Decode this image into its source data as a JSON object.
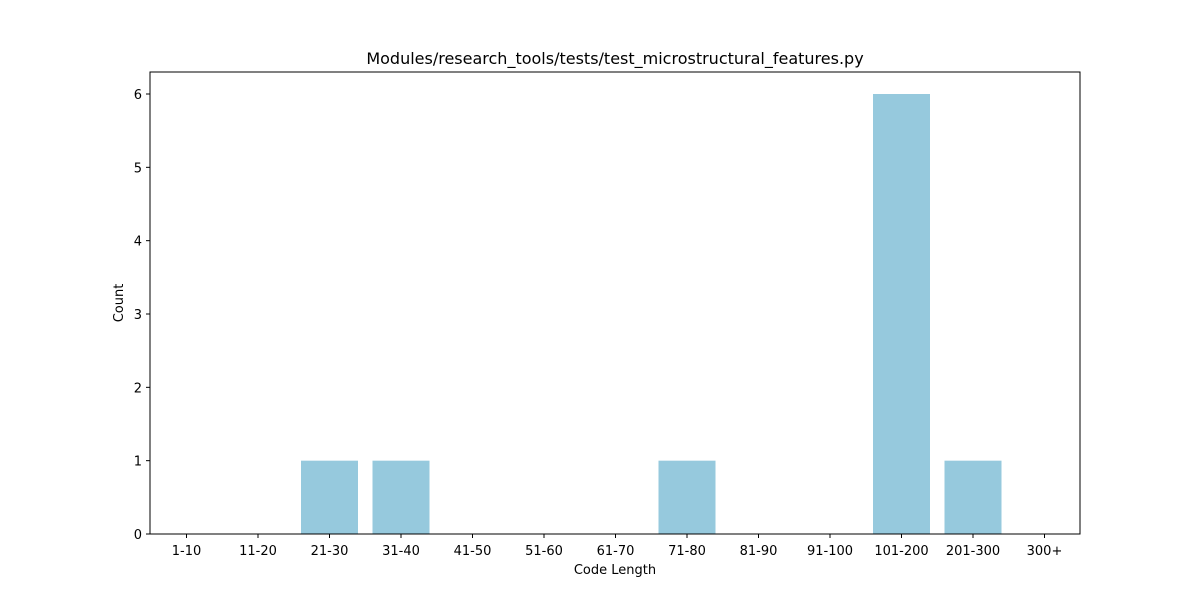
{
  "chart_data": {
    "type": "bar",
    "title": "Modules/research_tools/tests/test_microstructural_features.py",
    "xlabel": "Code Length",
    "ylabel": "Count",
    "categories": [
      "1-10",
      "11-20",
      "21-30",
      "31-40",
      "41-50",
      "51-60",
      "61-70",
      "71-80",
      "81-90",
      "91-100",
      "101-200",
      "201-300",
      "300+"
    ],
    "values": [
      0,
      0,
      1,
      1,
      0,
      0,
      0,
      1,
      0,
      0,
      6,
      1,
      0
    ],
    "ylim": [
      0,
      6.3
    ],
    "yticks": [
      0,
      1,
      2,
      3,
      4,
      5,
      6
    ],
    "grid": false,
    "bar_color": "#96c9dd"
  }
}
